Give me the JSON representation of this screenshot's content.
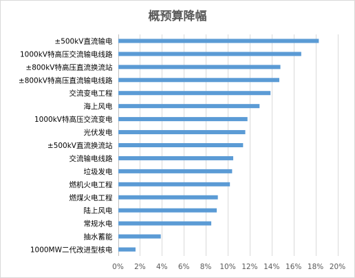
{
  "chart_data": {
    "type": "bar",
    "orientation": "horizontal",
    "title": "概预算降幅",
    "categories": [
      "±500kV直流输电",
      "1000kV特高压交流输电线路",
      "±800kV特高压直流换流站",
      "±800kV特高压直流输电线路",
      "交流变电工程",
      "海上风电",
      "1000kV特高压交流变电",
      "光伏发电",
      "±500kV直流换流站",
      "交流输电线路",
      "垃圾发电",
      "燃机火电工程",
      "燃煤火电工程",
      "陆上风电",
      "常规水电",
      "抽水蓄能",
      "1000MW二代改进型核电"
    ],
    "values": [
      0.183,
      0.167,
      0.148,
      0.147,
      0.139,
      0.129,
      0.118,
      0.116,
      0.114,
      0.105,
      0.104,
      0.102,
      0.091,
      0.09,
      0.085,
      0.039,
      0.016
    ],
    "xlim": [
      0,
      0.2
    ],
    "x_ticks": [
      "0%",
      "2%",
      "4%",
      "6%",
      "8%",
      "10%",
      "12%",
      "14%",
      "16%",
      "18%",
      "20%"
    ],
    "x_tick_values": [
      0,
      0.02,
      0.04,
      0.06,
      0.08,
      0.1,
      0.12,
      0.14,
      0.16,
      0.18,
      0.2
    ],
    "grid": true,
    "bar_color": "#5b9bd5"
  }
}
